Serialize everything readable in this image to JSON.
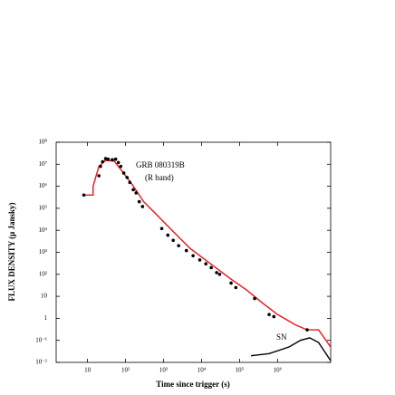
{
  "chart_data": {
    "type": "line",
    "xlabel": "Time since trigger (s)",
    "ylabel": "FLUX DENSITY (μ Jansky)",
    "annotations": [
      "GRB 080319B",
      "(R band)"
    ],
    "log_x": true,
    "log_y": true,
    "xlim": [
      1.5,
      25000000
    ],
    "ylim": [
      0.01,
      100000000
    ],
    "xticks": [
      10,
      {
        "value": 100,
        "label": "10²"
      },
      {
        "value": 1000,
        "label": "10³"
      },
      {
        "value": 10000,
        "label": "10⁴"
      },
      {
        "value": 100000,
        "label": "10⁵"
      },
      {
        "value": 1000000,
        "label": "10⁶"
      }
    ],
    "yticks": [
      {
        "value": 0.01,
        "label": "10⁻²"
      },
      {
        "value": 0.1,
        "label": "10⁻¹"
      },
      1,
      10,
      {
        "value": 100,
        "label": "10²"
      },
      {
        "value": 1000,
        "label": "10³"
      },
      {
        "value": 10000,
        "label": "10⁴"
      },
      {
        "value": 100000,
        "label": "10⁵"
      },
      {
        "value": 1000000,
        "label": "10⁶"
      },
      {
        "value": 10000000,
        "label": "10⁷"
      },
      {
        "value": 100000000,
        "label": "10⁸"
      }
    ],
    "series": [
      {
        "type": "line",
        "color": "#e8141c",
        "x": [
          8,
          14,
          14,
          20,
          30,
          50,
          80,
          150,
          300,
          600,
          1500,
          5000,
          20000,
          60000,
          150000,
          400000,
          1000000,
          3000000,
          6000000,
          12000000,
          25000000
        ],
        "values": [
          400000,
          400000,
          1000000,
          8000000,
          15000000,
          14000000,
          5000000,
          1200000,
          200000,
          60000,
          12000,
          1500,
          250,
          60,
          20,
          5,
          1.5,
          0.5,
          0.3,
          0.3,
          0.05
        ]
      },
      {
        "type": "scatter",
        "color": "#000000",
        "x": [
          8,
          20,
          22,
          25,
          30,
          35,
          45,
          55,
          65,
          75,
          90,
          110,
          130,
          160,
          190,
          230,
          280,
          900,
          1300,
          1800,
          2500,
          4000,
          6000,
          9000,
          13000,
          18000,
          25000,
          30000,
          60000,
          80000,
          250000,
          600000,
          800000,
          6000000
        ],
        "values": [
          400000,
          3000000,
          8000000,
          13000000,
          18000000,
          17000000,
          16000000,
          17000000,
          12000000,
          8000000,
          4000000,
          2500000,
          1500000,
          700000,
          500000,
          200000,
          120000,
          12000,
          6000,
          3500,
          2000,
          1200,
          700,
          450,
          300,
          200,
          120,
          100,
          40,
          25,
          8,
          1.5,
          1.2,
          0.3
        ]
      },
      {
        "type": "line",
        "name": "SN",
        "color": "#000000",
        "x": [
          200000,
          600000,
          2000000,
          4000000,
          7000000,
          12000000,
          25000000
        ],
        "values": [
          0.02,
          0.025,
          0.05,
          0.1,
          0.13,
          0.08,
          0.012
        ]
      }
    ]
  }
}
